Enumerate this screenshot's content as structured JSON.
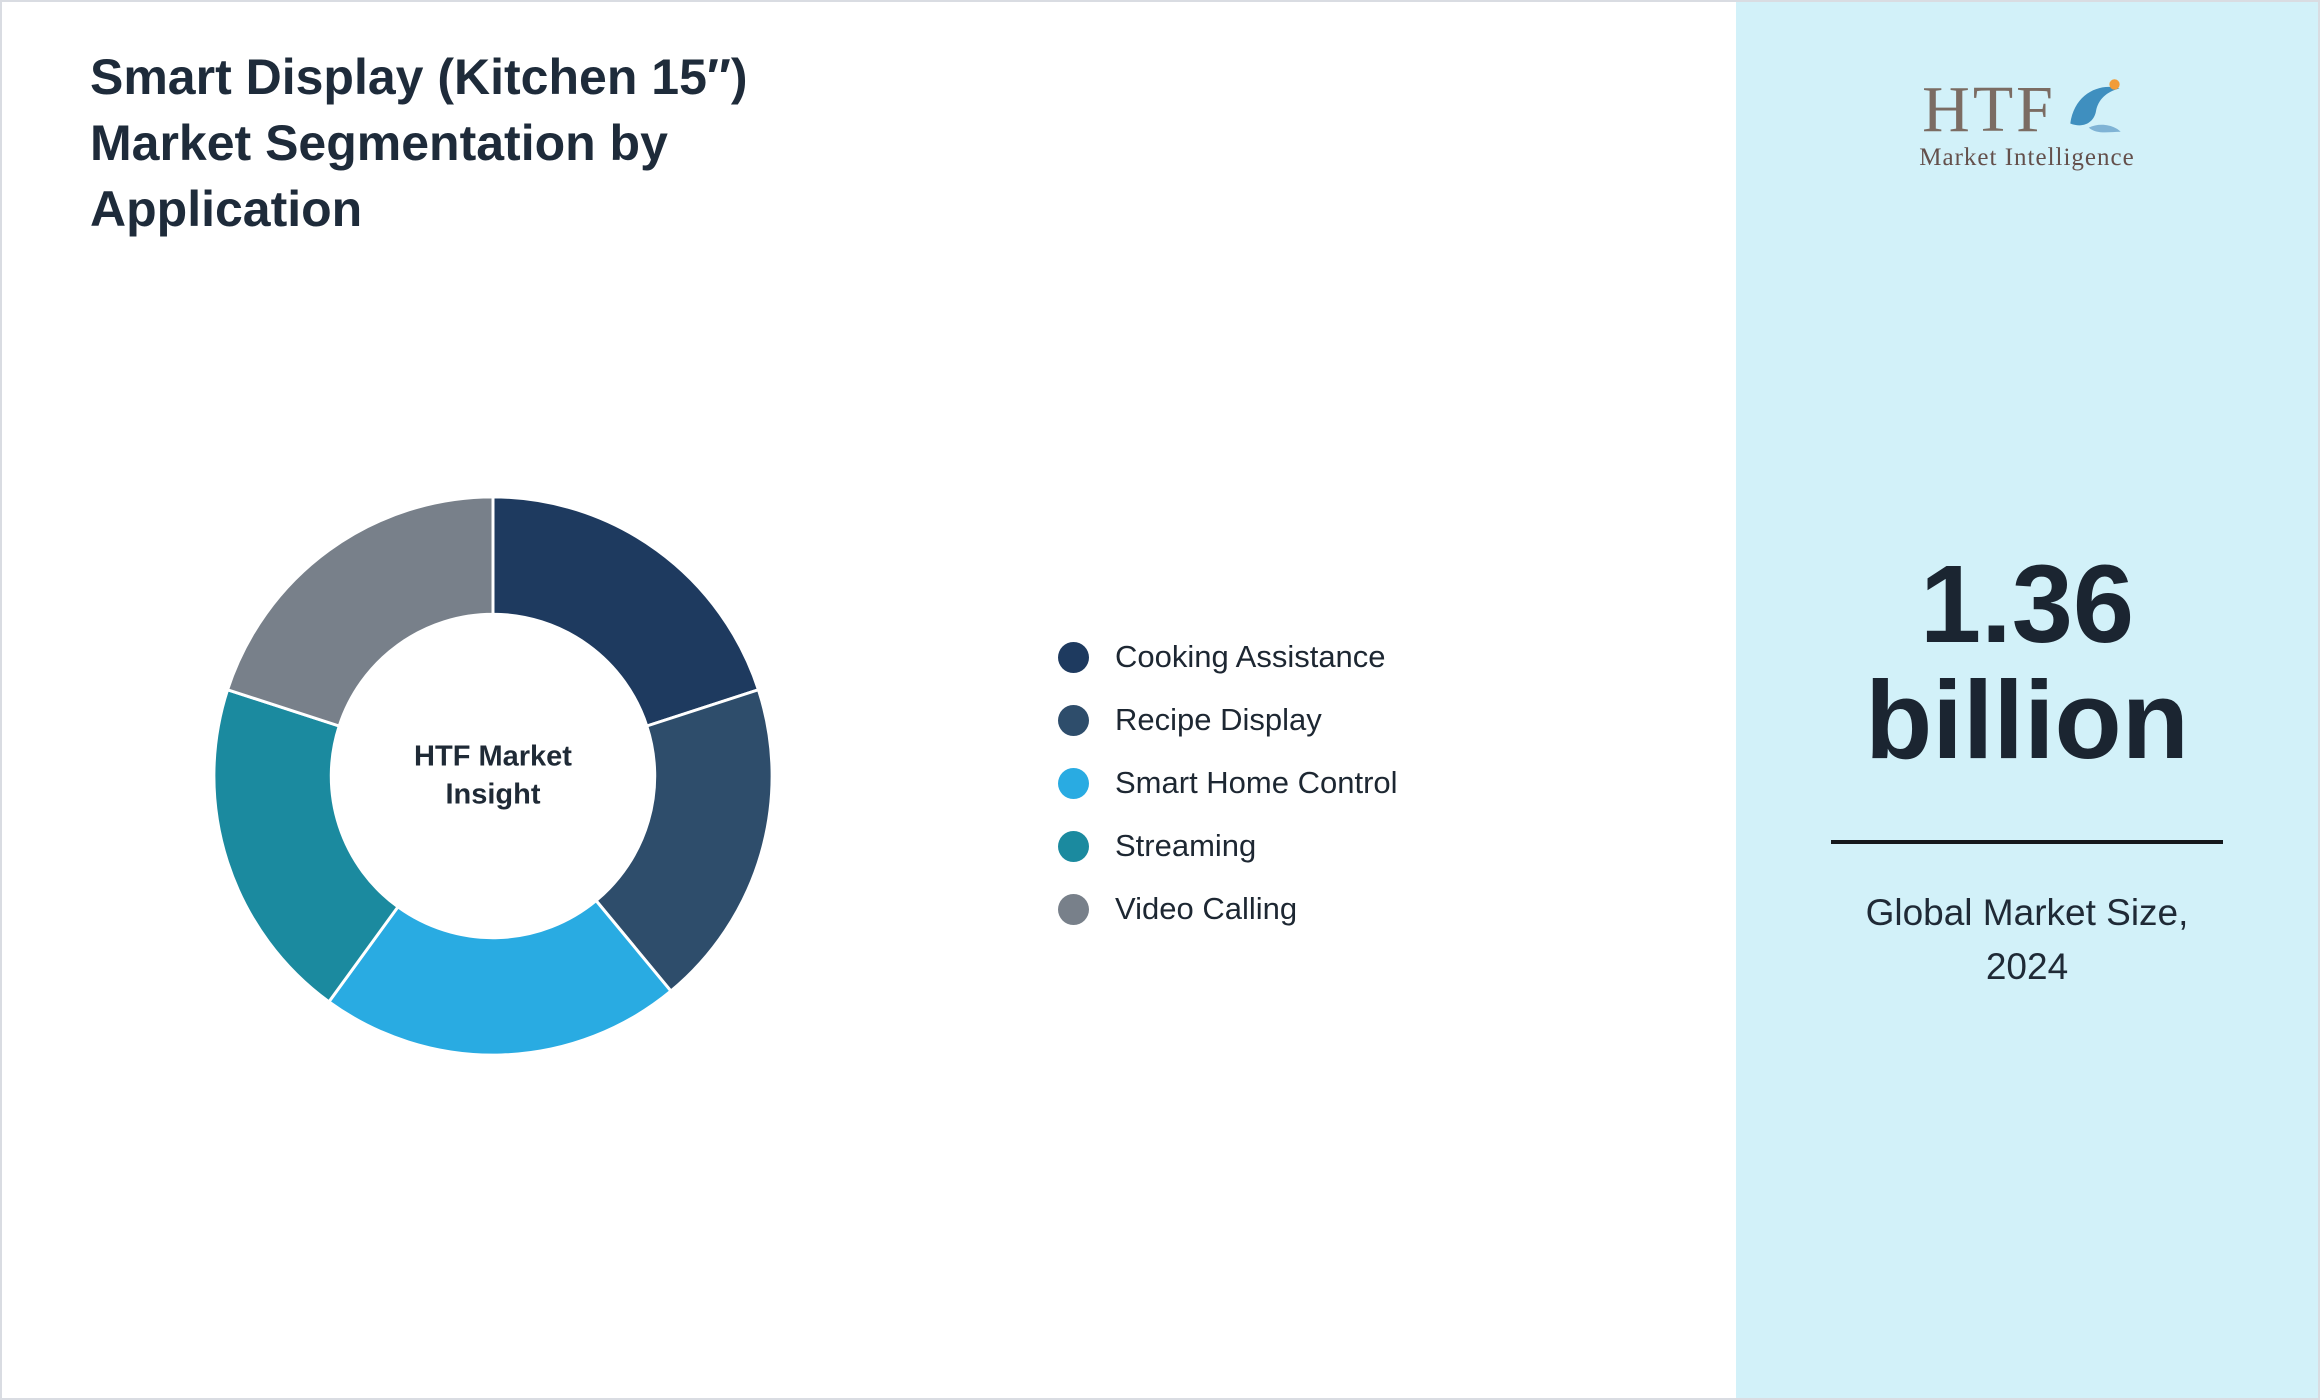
{
  "title": "Smart Display (Kitchen 15″) Market Segmentation by Application",
  "logo": {
    "text": "HTF",
    "subtext": "Market Intelligence"
  },
  "chart_data": {
    "type": "pie",
    "subtype": "donut",
    "title": "Smart Display (Kitchen 15″) Market Segmentation by Application",
    "categories": [
      "Cooking Assistance",
      "Recipe Display",
      "Smart Home Control",
      "Streaming",
      "Video Calling"
    ],
    "values": [
      20,
      19,
      21,
      20,
      20
    ],
    "colors": [
      "#1e3a5f",
      "#2e4d6b",
      "#29abe2",
      "#1b8a9f",
      "#78808a"
    ],
    "center_label": "HTF Market Insight",
    "legend_position": "right",
    "start_angle_deg": 0,
    "direction": "clockwise"
  },
  "market_size": {
    "value": "1.36",
    "unit": "billion",
    "caption": "Global Market Size, 2024"
  },
  "icons": {
    "dolphin": "dolphin-icon"
  }
}
